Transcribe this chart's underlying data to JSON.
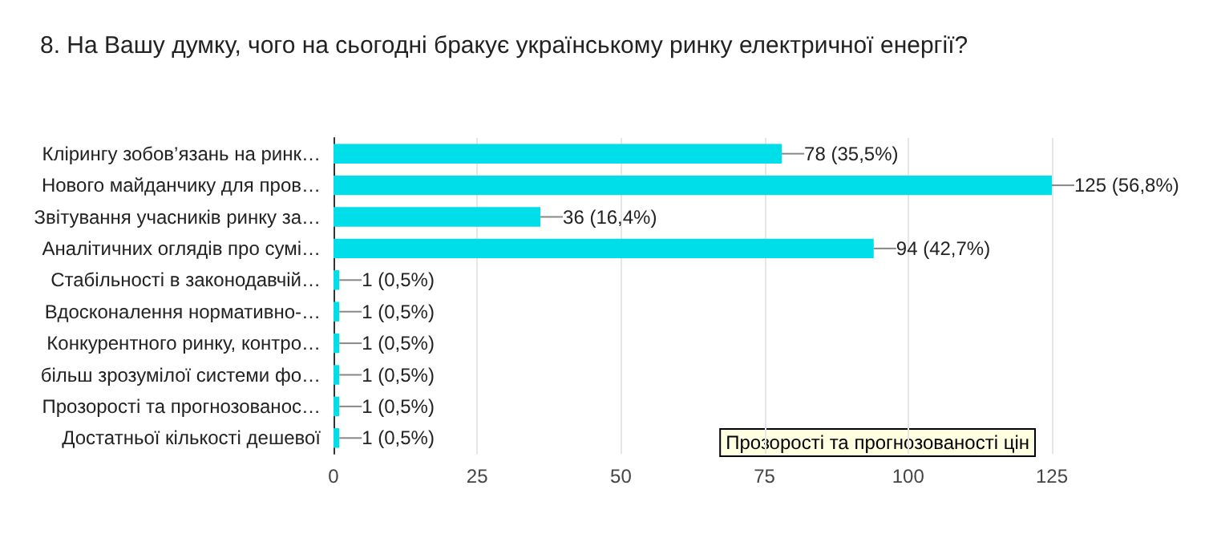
{
  "chart_data": {
    "type": "bar",
    "orientation": "horizontal",
    "title": "8. На Вашу думку, чого на сьогодні бракує українському ринку електричної енергії?",
    "categories": [
      "Клірингу зобов’язань на ринк…",
      "Нового майданчику для пров…",
      "Звітування учасників ринку за…",
      "Аналітичних оглядів про сумі…",
      "Стабільності в законодавчій…",
      "Вдосконалення нормативно-…",
      "Конкурентного ринку, контро…",
      "більш зрозумілої системи фо…",
      "Прозорості та прогнозованос…",
      "Достатньої кількості дешевої"
    ],
    "values": [
      78,
      125,
      36,
      94,
      1,
      1,
      1,
      1,
      1,
      1
    ],
    "value_labels": [
      "78 (35,5%)",
      "125 (56,8%)",
      "36 (16,4%)",
      "94 (42,7%)",
      "1 (0,5%)",
      "1 (0,5%)",
      "1 (0,5%)",
      "1 (0,5%)",
      "1 (0,5%)",
      "1 (0,5%)"
    ],
    "color": "#00deea",
    "xlim": [
      0,
      125
    ],
    "xticks": [
      0,
      25,
      50,
      75,
      100,
      125
    ],
    "grid": "x",
    "annotations": [
      "Прозорості та прогнозованості цін"
    ]
  }
}
